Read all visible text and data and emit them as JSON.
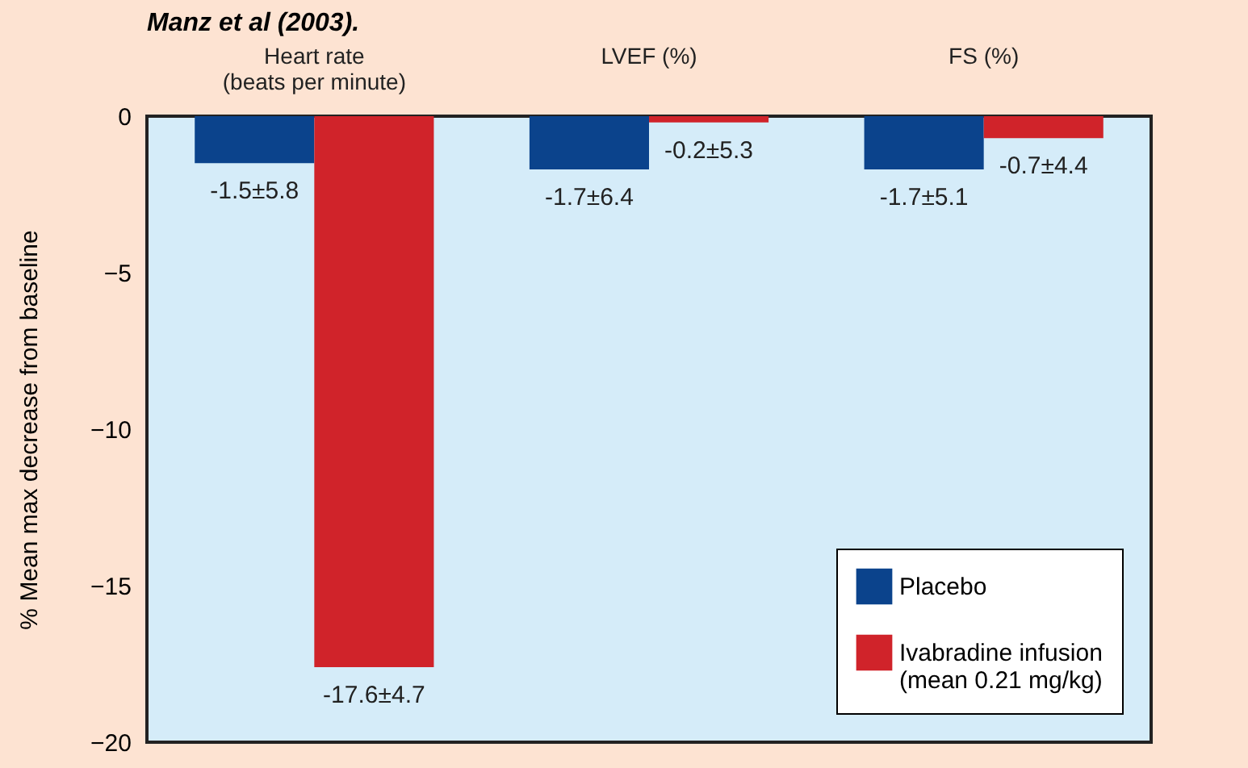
{
  "chart_data": {
    "type": "bar",
    "title": "Manz et al (2003).",
    "ylabel": "% Mean max decrease from baseline",
    "categories": [
      "Heart rate\n(beats per minute)",
      "LVEF (%)",
      "FS (%)"
    ],
    "series": [
      {
        "name": "Placebo",
        "color": "#0b438c",
        "values": [
          -1.5,
          -1.7,
          -1.7
        ],
        "value_labels": [
          "-1.5±5.8",
          "-1.7±6.4",
          "-1.7±5.1"
        ]
      },
      {
        "name": "Ivabradine infusion\n(mean 0.21 mg/kg)",
        "color": "#d0232a",
        "values": [
          -17.6,
          -0.2,
          -0.7
        ],
        "value_labels": [
          "-17.6±4.7",
          "-0.2±5.3",
          "-0.7±4.4"
        ]
      }
    ],
    "ylim": [
      -20,
      0
    ],
    "yticks": [
      0,
      -5,
      -10,
      -15,
      -20
    ],
    "legend": "bottom right"
  }
}
